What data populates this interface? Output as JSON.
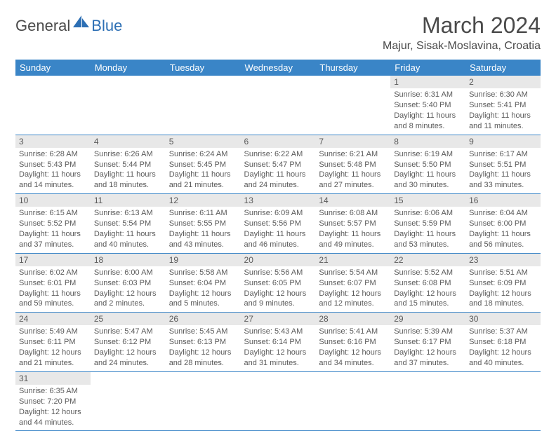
{
  "logo": {
    "text1": "General",
    "text2": "Blue",
    "brand_gray": "#4a4a4a",
    "brand_blue": "#2d6fb4"
  },
  "header": {
    "title": "March 2024",
    "location": "Majur, Sisak-Moslavina, Croatia"
  },
  "colors": {
    "header_bg": "#3a85c7",
    "header_text": "#ffffff",
    "daynum_bg": "#e8e8e8",
    "cell_border": "#3a85c7",
    "body_text": "#5a5a5a"
  },
  "typography": {
    "title_fontsize": 32,
    "location_fontsize": 16,
    "dayheader_fontsize": 13,
    "daynum_fontsize": 12,
    "cell_fontsize": 11
  },
  "calendar": {
    "type": "table",
    "columns": [
      "Sunday",
      "Monday",
      "Tuesday",
      "Wednesday",
      "Thursday",
      "Friday",
      "Saturday"
    ],
    "weeks": [
      [
        null,
        null,
        null,
        null,
        null,
        {
          "n": "1",
          "sunrise": "Sunrise: 6:31 AM",
          "sunset": "Sunset: 5:40 PM",
          "daylight": "Daylight: 11 hours and 8 minutes."
        },
        {
          "n": "2",
          "sunrise": "Sunrise: 6:30 AM",
          "sunset": "Sunset: 5:41 PM",
          "daylight": "Daylight: 11 hours and 11 minutes."
        }
      ],
      [
        {
          "n": "3",
          "sunrise": "Sunrise: 6:28 AM",
          "sunset": "Sunset: 5:43 PM",
          "daylight": "Daylight: 11 hours and 14 minutes."
        },
        {
          "n": "4",
          "sunrise": "Sunrise: 6:26 AM",
          "sunset": "Sunset: 5:44 PM",
          "daylight": "Daylight: 11 hours and 18 minutes."
        },
        {
          "n": "5",
          "sunrise": "Sunrise: 6:24 AM",
          "sunset": "Sunset: 5:45 PM",
          "daylight": "Daylight: 11 hours and 21 minutes."
        },
        {
          "n": "6",
          "sunrise": "Sunrise: 6:22 AM",
          "sunset": "Sunset: 5:47 PM",
          "daylight": "Daylight: 11 hours and 24 minutes."
        },
        {
          "n": "7",
          "sunrise": "Sunrise: 6:21 AM",
          "sunset": "Sunset: 5:48 PM",
          "daylight": "Daylight: 11 hours and 27 minutes."
        },
        {
          "n": "8",
          "sunrise": "Sunrise: 6:19 AM",
          "sunset": "Sunset: 5:50 PM",
          "daylight": "Daylight: 11 hours and 30 minutes."
        },
        {
          "n": "9",
          "sunrise": "Sunrise: 6:17 AM",
          "sunset": "Sunset: 5:51 PM",
          "daylight": "Daylight: 11 hours and 33 minutes."
        }
      ],
      [
        {
          "n": "10",
          "sunrise": "Sunrise: 6:15 AM",
          "sunset": "Sunset: 5:52 PM",
          "daylight": "Daylight: 11 hours and 37 minutes."
        },
        {
          "n": "11",
          "sunrise": "Sunrise: 6:13 AM",
          "sunset": "Sunset: 5:54 PM",
          "daylight": "Daylight: 11 hours and 40 minutes."
        },
        {
          "n": "12",
          "sunrise": "Sunrise: 6:11 AM",
          "sunset": "Sunset: 5:55 PM",
          "daylight": "Daylight: 11 hours and 43 minutes."
        },
        {
          "n": "13",
          "sunrise": "Sunrise: 6:09 AM",
          "sunset": "Sunset: 5:56 PM",
          "daylight": "Daylight: 11 hours and 46 minutes."
        },
        {
          "n": "14",
          "sunrise": "Sunrise: 6:08 AM",
          "sunset": "Sunset: 5:57 PM",
          "daylight": "Daylight: 11 hours and 49 minutes."
        },
        {
          "n": "15",
          "sunrise": "Sunrise: 6:06 AM",
          "sunset": "Sunset: 5:59 PM",
          "daylight": "Daylight: 11 hours and 53 minutes."
        },
        {
          "n": "16",
          "sunrise": "Sunrise: 6:04 AM",
          "sunset": "Sunset: 6:00 PM",
          "daylight": "Daylight: 11 hours and 56 minutes."
        }
      ],
      [
        {
          "n": "17",
          "sunrise": "Sunrise: 6:02 AM",
          "sunset": "Sunset: 6:01 PM",
          "daylight": "Daylight: 11 hours and 59 minutes."
        },
        {
          "n": "18",
          "sunrise": "Sunrise: 6:00 AM",
          "sunset": "Sunset: 6:03 PM",
          "daylight": "Daylight: 12 hours and 2 minutes."
        },
        {
          "n": "19",
          "sunrise": "Sunrise: 5:58 AM",
          "sunset": "Sunset: 6:04 PM",
          "daylight": "Daylight: 12 hours and 5 minutes."
        },
        {
          "n": "20",
          "sunrise": "Sunrise: 5:56 AM",
          "sunset": "Sunset: 6:05 PM",
          "daylight": "Daylight: 12 hours and 9 minutes."
        },
        {
          "n": "21",
          "sunrise": "Sunrise: 5:54 AM",
          "sunset": "Sunset: 6:07 PM",
          "daylight": "Daylight: 12 hours and 12 minutes."
        },
        {
          "n": "22",
          "sunrise": "Sunrise: 5:52 AM",
          "sunset": "Sunset: 6:08 PM",
          "daylight": "Daylight: 12 hours and 15 minutes."
        },
        {
          "n": "23",
          "sunrise": "Sunrise: 5:51 AM",
          "sunset": "Sunset: 6:09 PM",
          "daylight": "Daylight: 12 hours and 18 minutes."
        }
      ],
      [
        {
          "n": "24",
          "sunrise": "Sunrise: 5:49 AM",
          "sunset": "Sunset: 6:11 PM",
          "daylight": "Daylight: 12 hours and 21 minutes."
        },
        {
          "n": "25",
          "sunrise": "Sunrise: 5:47 AM",
          "sunset": "Sunset: 6:12 PM",
          "daylight": "Daylight: 12 hours and 24 minutes."
        },
        {
          "n": "26",
          "sunrise": "Sunrise: 5:45 AM",
          "sunset": "Sunset: 6:13 PM",
          "daylight": "Daylight: 12 hours and 28 minutes."
        },
        {
          "n": "27",
          "sunrise": "Sunrise: 5:43 AM",
          "sunset": "Sunset: 6:14 PM",
          "daylight": "Daylight: 12 hours and 31 minutes."
        },
        {
          "n": "28",
          "sunrise": "Sunrise: 5:41 AM",
          "sunset": "Sunset: 6:16 PM",
          "daylight": "Daylight: 12 hours and 34 minutes."
        },
        {
          "n": "29",
          "sunrise": "Sunrise: 5:39 AM",
          "sunset": "Sunset: 6:17 PM",
          "daylight": "Daylight: 12 hours and 37 minutes."
        },
        {
          "n": "30",
          "sunrise": "Sunrise: 5:37 AM",
          "sunset": "Sunset: 6:18 PM",
          "daylight": "Daylight: 12 hours and 40 minutes."
        }
      ],
      [
        {
          "n": "31",
          "sunrise": "Sunrise: 6:35 AM",
          "sunset": "Sunset: 7:20 PM",
          "daylight": "Daylight: 12 hours and 44 minutes."
        },
        null,
        null,
        null,
        null,
        null,
        null
      ]
    ]
  }
}
